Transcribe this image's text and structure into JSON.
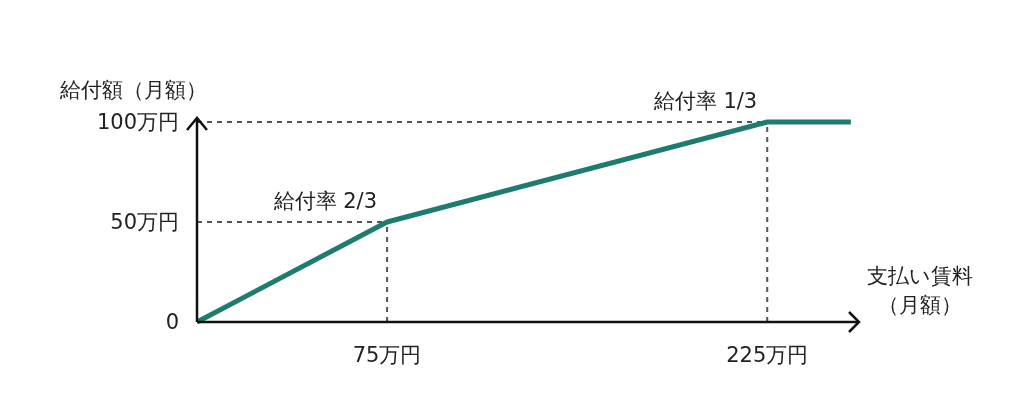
{
  "chart_data": {
    "type": "line",
    "ylabel": "給付額（月額）",
    "xlabel": "支払い賃料（月額）",
    "x": [
      0,
      75,
      225,
      258
    ],
    "series": [
      {
        "color": "#1d7b70",
        "values": [
          0,
          50,
          100,
          100
        ]
      }
    ],
    "xlim": [
      0,
      262
    ],
    "ylim": [
      0,
      102
    ],
    "xticks": [
      {
        "value": 75,
        "label": "75万円"
      },
      {
        "value": 225,
        "label": "225万円"
      }
    ],
    "yticks": [
      0,
      {
        "value": 50,
        "label": "50万円"
      },
      {
        "value": 100,
        "label": "100万円"
      }
    ],
    "ref_lines": [
      {
        "axis": "y",
        "value": 50,
        "color": "#555555",
        "line_style": "dashed"
      },
      {
        "axis": "y",
        "value": 100,
        "color": "#555555",
        "line_style": "dashed"
      },
      {
        "axis": "x",
        "value": 75,
        "color": "#555555",
        "line_style": "dashed"
      },
      {
        "axis": "x",
        "value": 225,
        "color": "#555555",
        "line_style": "dashed"
      }
    ],
    "annotations": [
      {
        "text": "給付率 2/3",
        "x": 75,
        "y": 50
      },
      {
        "text": "給付率 1/3",
        "x": 225,
        "y": 100
      }
    ],
    "line_style": "solid"
  }
}
